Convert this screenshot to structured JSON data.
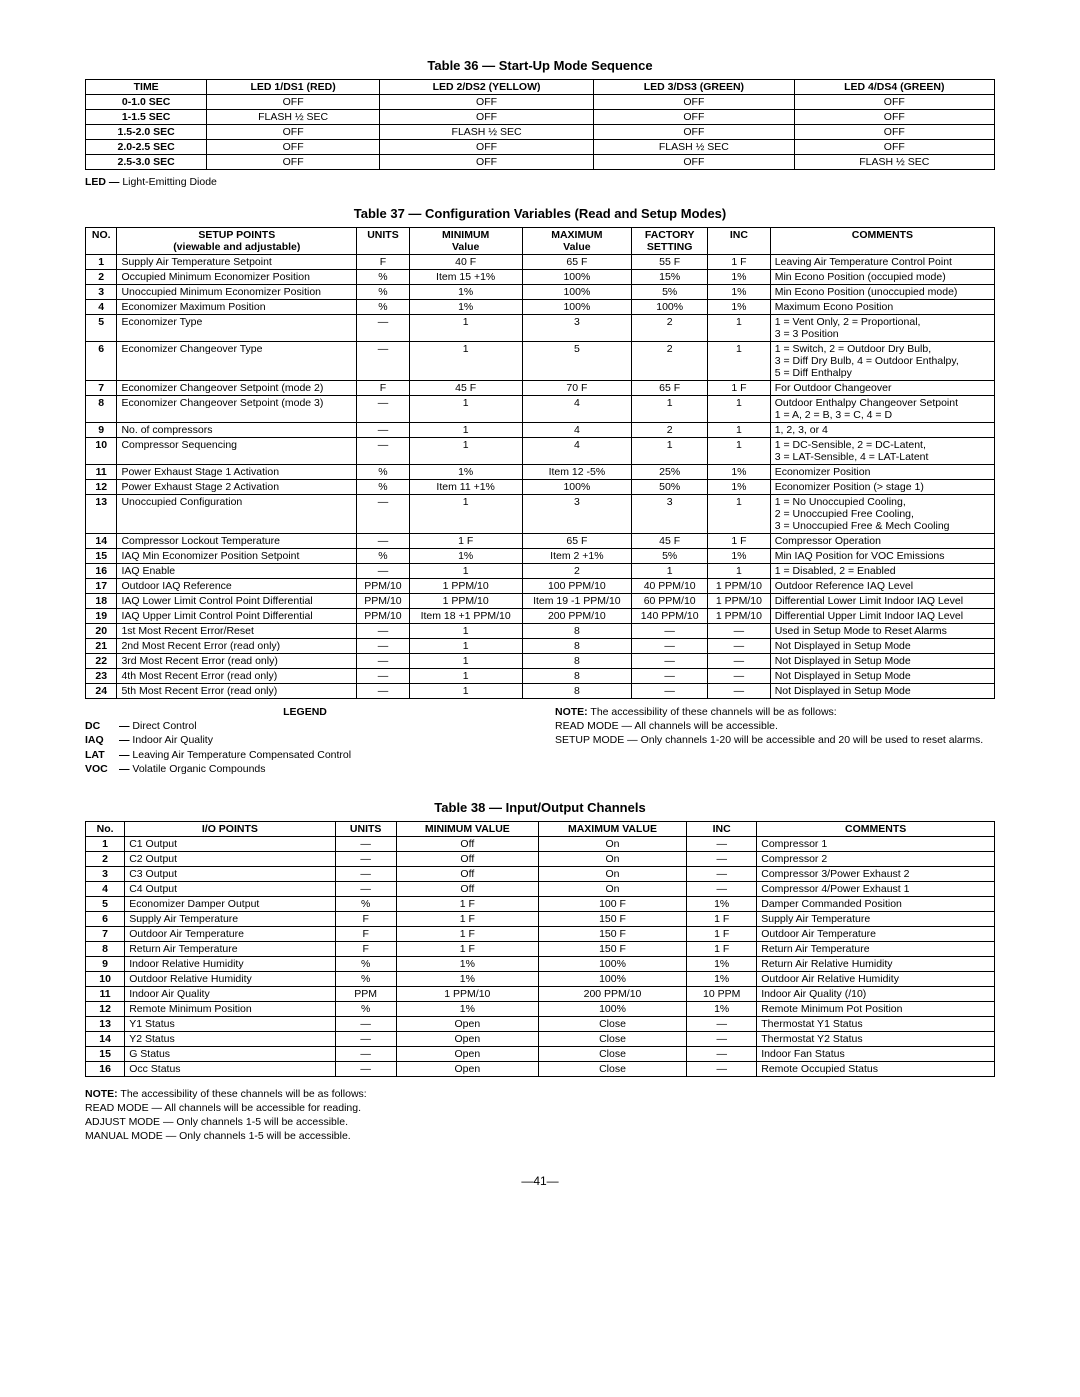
{
  "table36": {
    "title": "Table 36 — Start-Up Mode Sequence",
    "headers": [
      "TIME",
      "LED 1/DS1 (RED)",
      "LED 2/DS2 (YELLOW)",
      "LED 3/DS3 (GREEN)",
      "LED 4/DS4 (GREEN)"
    ],
    "rows": [
      [
        "0-1.0 SEC",
        "OFF",
        "OFF",
        "OFF",
        "OFF"
      ],
      [
        "1-1.5 SEC",
        "FLASH ½ SEC",
        "OFF",
        "OFF",
        "OFF"
      ],
      [
        "1.5-2.0 SEC",
        "OFF",
        "FLASH ½ SEC",
        "OFF",
        "OFF"
      ],
      [
        "2.0-2.5 SEC",
        "OFF",
        "OFF",
        "FLASH ½ SEC",
        "OFF"
      ],
      [
        "2.5-3.0 SEC",
        "OFF",
        "OFF",
        "OFF",
        "FLASH ½ SEC"
      ]
    ],
    "footnote_label": "LED —",
    "footnote_text": "Light-Emitting Diode"
  },
  "table37": {
    "title": "Table 37 — Configuration Variables (Read and Setup Modes)",
    "headers": {
      "no": "NO.",
      "setup1": "SETUP POINTS",
      "setup2": "(viewable and adjustable)",
      "units": "UNITS",
      "min1": "MINIMUM",
      "min2": "Value",
      "max1": "MAXIMUM",
      "max2": "Value",
      "fac1": "FACTORY",
      "fac2": "SETTING",
      "inc": "INC",
      "comments": "COMMENTS"
    },
    "rows": [
      {
        "no": "1",
        "sp": "Supply Air Temperature Setpoint",
        "u": "F",
        "min": "40 F",
        "max": "65 F",
        "fac": "55 F",
        "inc": "1 F",
        "c": "Leaving Air Temperature Control Point"
      },
      {
        "no": "2",
        "sp": "Occupied Minimum Economizer Position",
        "u": "%",
        "min": "Item 15 +1%",
        "max": "100%",
        "fac": "15%",
        "inc": "1%",
        "c": "Min Econo Position (occupied mode)"
      },
      {
        "no": "3",
        "sp": "Unoccupied Minimum Economizer Position",
        "u": "%",
        "min": "1%",
        "max": "100%",
        "fac": "5%",
        "inc": "1%",
        "c": "Min Econo Position (unoccupied mode)"
      },
      {
        "no": "4",
        "sp": "Economizer Maximum Position",
        "u": "%",
        "min": "1%",
        "max": "100%",
        "fac": "100%",
        "inc": "1%",
        "c": "Maximum Econo Position"
      },
      {
        "no": "5",
        "sp": "Economizer Type",
        "u": "—",
        "min": "1",
        "max": "3",
        "fac": "2",
        "inc": "1",
        "c": "1 = Vent Only, 2 = Proportional,\n3 = 3 Position"
      },
      {
        "no": "6",
        "sp": "Economizer Changeover Type",
        "u": "—",
        "min": "1",
        "max": "5",
        "fac": "2",
        "inc": "1",
        "c": "1 = Switch, 2 = Outdoor Dry Bulb,\n3 = Diff Dry Bulb, 4 = Outdoor Enthalpy,\n5 = Diff Enthalpy"
      },
      {
        "no": "7",
        "sp": "Economizer Changeover Setpoint (mode 2)",
        "u": "F",
        "min": "45 F",
        "max": "70 F",
        "fac": "65 F",
        "inc": "1 F",
        "c": "For Outdoor Changeover"
      },
      {
        "no": "8",
        "sp": "Economizer Changeover Setpoint (mode 3)",
        "u": "—",
        "min": "1",
        "max": "4",
        "fac": "1",
        "inc": "1",
        "c": "Outdoor Enthalpy Changeover Setpoint\n1 = A, 2 = B, 3 = C, 4 = D"
      },
      {
        "no": "9",
        "sp": "No. of compressors",
        "u": "—",
        "min": "1",
        "max": "4",
        "fac": "2",
        "inc": "1",
        "c": "1, 2, 3, or 4"
      },
      {
        "no": "10",
        "sp": "Compressor Sequencing",
        "u": "—",
        "min": "1",
        "max": "4",
        "fac": "1",
        "inc": "1",
        "c": "1 = DC-Sensible, 2 = DC-Latent,\n3 = LAT-Sensible, 4 = LAT-Latent"
      },
      {
        "no": "11",
        "sp": "Power Exhaust Stage 1 Activation",
        "u": "%",
        "min": "1%",
        "max": "Item 12 -5%",
        "fac": "25%",
        "inc": "1%",
        "c": "Economizer Position"
      },
      {
        "no": "12",
        "sp": "Power Exhaust Stage 2 Activation",
        "u": "%",
        "min": "Item 11 +1%",
        "max": "100%",
        "fac": "50%",
        "inc": "1%",
        "c": "Economizer Position (> stage 1)"
      },
      {
        "no": "13",
        "sp": "Unoccupied Configuration",
        "u": "—",
        "min": "1",
        "max": "3",
        "fac": "3",
        "inc": "1",
        "c": "1 = No Unoccupied Cooling,\n2 = Unoccupied Free Cooling,\n3 = Unoccupied Free & Mech Cooling"
      },
      {
        "no": "14",
        "sp": "Compressor Lockout Temperature",
        "u": "—",
        "min": "1 F",
        "max": "65 F",
        "fac": "45 F",
        "inc": "1 F",
        "c": "Compressor Operation"
      },
      {
        "no": "15",
        "sp": "IAQ Min Economizer Position Setpoint",
        "u": "%",
        "min": "1%",
        "max": "Item 2 +1%",
        "fac": "5%",
        "inc": "1%",
        "c": "Min IAQ Position for VOC Emissions"
      },
      {
        "no": "16",
        "sp": "IAQ Enable",
        "u": "—",
        "min": "1",
        "max": "2",
        "fac": "1",
        "inc": "1",
        "c": "1 = Disabled, 2 = Enabled"
      },
      {
        "no": "17",
        "sp": "Outdoor IAQ Reference",
        "u": "PPM/10",
        "min": "1 PPM/10",
        "max": "100 PPM/10",
        "fac": "40 PPM/10",
        "inc": "1 PPM/10",
        "c": "Outdoor Reference IAQ Level"
      },
      {
        "no": "18",
        "sp": "IAQ Lower Limit Control Point Differential",
        "u": "PPM/10",
        "min": "1 PPM/10",
        "max": "Item 19 -1 PPM/10",
        "fac": "60 PPM/10",
        "inc": "1 PPM/10",
        "c": "Differential Lower Limit Indoor IAQ Level"
      },
      {
        "no": "19",
        "sp": "IAQ Upper Limit Control Point Differential",
        "u": "PPM/10",
        "min": "Item 18 +1 PPM/10",
        "max": "200 PPM/10",
        "fac": "140 PPM/10",
        "inc": "1 PPM/10",
        "c": "Differential Upper Limit Indoor IAQ Level"
      },
      {
        "no": "20",
        "sp": "1st Most Recent Error/Reset",
        "u": "—",
        "min": "1",
        "max": "8",
        "fac": "—",
        "inc": "—",
        "c": "Used in Setup Mode to Reset Alarms"
      },
      {
        "no": "21",
        "sp": "2nd Most Recent Error (read only)",
        "u": "—",
        "min": "1",
        "max": "8",
        "fac": "—",
        "inc": "—",
        "c": "Not Displayed in Setup Mode"
      },
      {
        "no": "22",
        "sp": "3rd Most Recent Error (read only)",
        "u": "—",
        "min": "1",
        "max": "8",
        "fac": "—",
        "inc": "—",
        "c": "Not Displayed in Setup Mode"
      },
      {
        "no": "23",
        "sp": "4th Most Recent Error (read only)",
        "u": "—",
        "min": "1",
        "max": "8",
        "fac": "—",
        "inc": "—",
        "c": "Not Displayed in Setup Mode"
      },
      {
        "no": "24",
        "sp": "5th Most Recent Error (read only)",
        "u": "—",
        "min": "1",
        "max": "8",
        "fac": "—",
        "inc": "—",
        "c": "Not Displayed in Setup Mode"
      }
    ],
    "legend_title": "LEGEND",
    "legend": [
      {
        "abbr": "DC",
        "dash": "—",
        "text": "Direct Control"
      },
      {
        "abbr": "IAQ",
        "dash": "—",
        "text": "Indoor Air Quality"
      },
      {
        "abbr": "LAT",
        "dash": "—",
        "text": "Leaving Air Temperature Compensated Control"
      },
      {
        "abbr": "VOC",
        "dash": "—",
        "text": "Volatile Organic Compounds"
      }
    ],
    "note_label": "NOTE:",
    "note_line1": "The accessibility of these channels will be as follows:",
    "note_line2": "READ MODE — All channels will be accessible.",
    "note_line3": "SETUP MODE — Only channels 1-20 will be accessible and 20 will be used to reset alarms."
  },
  "table38": {
    "title": "Table 38 — Input/Output Channels",
    "headers": [
      "No.",
      "I/O POINTS",
      "UNITS",
      "MINIMUM VALUE",
      "MAXIMUM VALUE",
      "INC",
      "COMMENTS"
    ],
    "rows": [
      {
        "no": "1",
        "io": "C1 Output",
        "u": "—",
        "min": "Off",
        "max": "On",
        "inc": "—",
        "c": "Compressor 1"
      },
      {
        "no": "2",
        "io": "C2 Output",
        "u": "—",
        "min": "Off",
        "max": "On",
        "inc": "—",
        "c": "Compressor 2"
      },
      {
        "no": "3",
        "io": "C3 Output",
        "u": "—",
        "min": "Off",
        "max": "On",
        "inc": "—",
        "c": "Compressor 3/Power Exhaust 2"
      },
      {
        "no": "4",
        "io": "C4 Output",
        "u": "—",
        "min": "Off",
        "max": "On",
        "inc": "—",
        "c": "Compressor 4/Power Exhaust 1"
      },
      {
        "no": "5",
        "io": "Economizer Damper Output",
        "u": "%",
        "min": "1 F",
        "max": "100 F",
        "inc": "1%",
        "c": "Damper Commanded Position"
      },
      {
        "no": "6",
        "io": "Supply Air Temperature",
        "u": "F",
        "min": "1 F",
        "max": "150 F",
        "inc": "1 F",
        "c": "Supply Air Temperature"
      },
      {
        "no": "7",
        "io": "Outdoor Air Temperature",
        "u": "F",
        "min": "1 F",
        "max": "150 F",
        "inc": "1 F",
        "c": "Outdoor Air Temperature"
      },
      {
        "no": "8",
        "io": "Return Air Temperature",
        "u": "F",
        "min": "1 F",
        "max": "150 F",
        "inc": "1 F",
        "c": "Return Air Temperature"
      },
      {
        "no": "9",
        "io": "Indoor Relative Humidity",
        "u": "%",
        "min": "1%",
        "max": "100%",
        "inc": "1%",
        "c": "Return Air Relative Humidity"
      },
      {
        "no": "10",
        "io": "Outdoor Relative Humidity",
        "u": "%",
        "min": "1%",
        "max": "100%",
        "inc": "1%",
        "c": "Outdoor Air Relative Humidity"
      },
      {
        "no": "11",
        "io": "Indoor Air Quality",
        "u": "PPM",
        "min": "1 PPM/10",
        "max": "200 PPM/10",
        "inc": "10 PPM",
        "c": "Indoor Air Quality (/10)"
      },
      {
        "no": "12",
        "io": "Remote Minimum Position",
        "u": "%",
        "min": "1%",
        "max": "100%",
        "inc": "1%",
        "c": "Remote Minimum Pot Position"
      },
      {
        "no": "13",
        "io": "Y1 Status",
        "u": "—",
        "min": "Open",
        "max": "Close",
        "inc": "—",
        "c": "Thermostat Y1 Status"
      },
      {
        "no": "14",
        "io": "Y2 Status",
        "u": "—",
        "min": "Open",
        "max": "Close",
        "inc": "—",
        "c": "Thermostat Y2 Status"
      },
      {
        "no": "15",
        "io": "G Status",
        "u": "—",
        "min": "Open",
        "max": "Close",
        "inc": "—",
        "c": "Indoor Fan Status"
      },
      {
        "no": "16",
        "io": "Occ Status",
        "u": "—",
        "min": "Open",
        "max": "Close",
        "inc": "—",
        "c": "Remote Occupied Status"
      }
    ],
    "note_label": "NOTE:",
    "note_line1": "The accessibility of these channels will be as follows:",
    "note_line2": "READ MODE — All channels will be accessible for reading.",
    "note_line3": "ADJUST MODE — Only channels 1-5 will be accessible.",
    "note_line4": "MANUAL MODE — Only channels 1-5 will be accessible."
  },
  "page_number": "—41—"
}
